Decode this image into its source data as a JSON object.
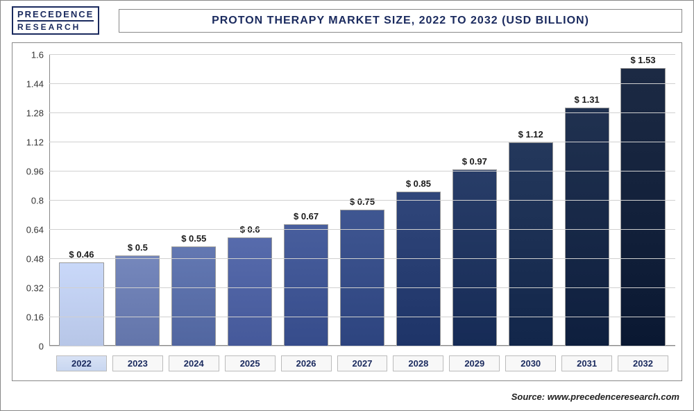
{
  "logo": {
    "top": "PRECEDENCE",
    "bottom": "RESEARCH"
  },
  "title": "PROTON THERAPY MARKET SIZE, 2022 TO 2032 (USD BILLION)",
  "chart": {
    "type": "bar",
    "ylim": [
      0,
      1.6
    ],
    "ytick_step": 0.16,
    "yticks": [
      "0",
      "0.16",
      "0.32",
      "0.48",
      "0.64",
      "0.8",
      "0.96",
      "1.12",
      "1.28",
      "1.44",
      "1.6"
    ],
    "categories": [
      "2022",
      "2023",
      "2024",
      "2025",
      "2026",
      "2027",
      "2028",
      "2029",
      "2030",
      "2031",
      "2032"
    ],
    "labels": [
      "$ 0.46",
      "$ 0.5",
      "$ 0.55",
      "$ 0.6",
      "$ 0.67",
      "$ 0.75",
      "$ 0.85",
      "$ 0.97",
      "$ 1.12",
      "$ 1.31",
      "$ 1.53"
    ],
    "values": [
      0.46,
      0.5,
      0.55,
      0.6,
      0.67,
      0.75,
      0.85,
      0.97,
      1.12,
      1.31,
      1.53
    ],
    "bar_colors": [
      "#b7c6e7",
      "#6375aa",
      "#5166a0",
      "#45599a",
      "#364c8b",
      "#2d447f",
      "#1e3468",
      "#162b56",
      "#12264a",
      "#0e1f3e",
      "#0a1832"
    ],
    "grid_color": "#d0d0d0",
    "axis_color": "#888888",
    "background_color": "#ffffff",
    "label_fontsize": 13,
    "title_fontsize": 16,
    "bar_width": 0.88
  },
  "source": "Source: www.precedenceresearch.com"
}
